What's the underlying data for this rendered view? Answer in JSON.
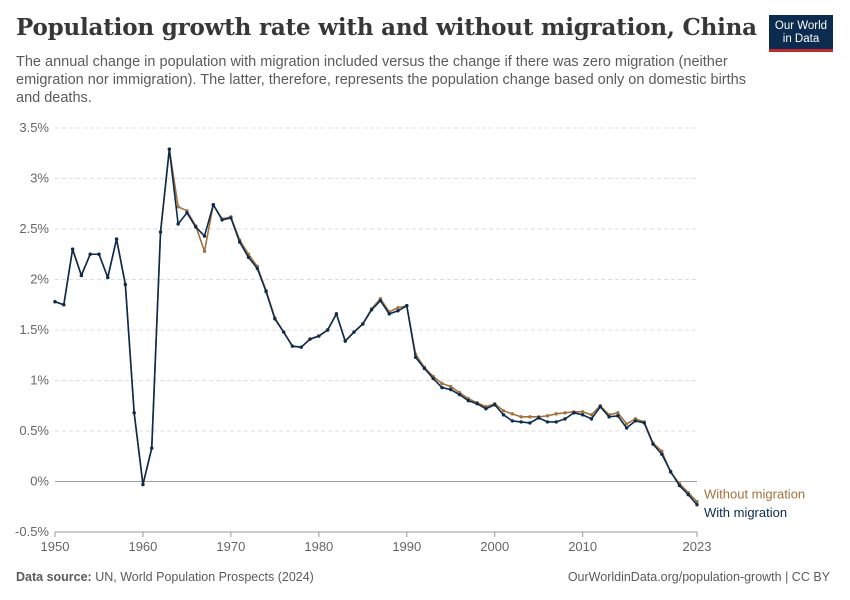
{
  "header": {
    "title": "Population growth rate with and without migration, China",
    "subtitle": "The annual change in population with migration included versus the change if there was zero migration (neither emigration nor immigration). The latter, therefore, represents the population change based only on domestic births and deaths."
  },
  "logo": {
    "line1": "Our World",
    "line2": "in Data"
  },
  "footer": {
    "source_label": "Data source:",
    "source_text": "UN, World Population Prospects (2024)",
    "url": "OurWorldinData.org/population-growth | CC BY"
  },
  "colors": {
    "with_migration": "#0b2b4f",
    "without_migration": "#a2723e",
    "grid": "#dddddd",
    "zero_line": "#a0a0a0"
  },
  "chart_data": {
    "type": "line",
    "title": "Population growth rate with and without migration, China",
    "xlabel": "",
    "ylabel": "",
    "x_ticks": [
      1950,
      1960,
      1970,
      1980,
      1990,
      2000,
      2010,
      2023
    ],
    "x_tick_labels": [
      "1950",
      "1960",
      "1970",
      "1980",
      "1990",
      "2000",
      "2010",
      "2023"
    ],
    "y_ticks": [
      -0.5,
      0,
      0.5,
      1,
      1.5,
      2,
      2.5,
      3,
      3.5
    ],
    "y_tick_labels": [
      "-0.5%",
      "0%",
      "0.5%",
      "1%",
      "1.5%",
      "2%",
      "2.5%",
      "3%",
      "3.5%"
    ],
    "xlim": [
      1950,
      2023
    ],
    "ylim": [
      -0.5,
      3.5
    ],
    "grid": true,
    "legend": "right-end labels",
    "x": [
      1950,
      1951,
      1952,
      1953,
      1954,
      1955,
      1956,
      1957,
      1958,
      1959,
      1960,
      1961,
      1962,
      1963,
      1964,
      1965,
      1966,
      1967,
      1968,
      1969,
      1970,
      1971,
      1972,
      1973,
      1974,
      1975,
      1976,
      1977,
      1978,
      1979,
      1980,
      1981,
      1982,
      1983,
      1984,
      1985,
      1986,
      1987,
      1988,
      1989,
      1990,
      1991,
      1992,
      1993,
      1994,
      1995,
      1996,
      1997,
      1998,
      1999,
      2000,
      2001,
      2002,
      2003,
      2004,
      2005,
      2006,
      2007,
      2008,
      2009,
      2010,
      2011,
      2012,
      2013,
      2014,
      2015,
      2016,
      2017,
      2018,
      2019,
      2020,
      2021,
      2022,
      2023
    ],
    "series": [
      {
        "name": "Without migration",
        "label": "Without migration",
        "values": [
          1.78,
          1.75,
          2.3,
          2.04,
          2.25,
          2.25,
          2.02,
          2.4,
          1.95,
          0.68,
          -0.03,
          0.33,
          2.47,
          3.29,
          2.72,
          2.68,
          2.53,
          2.28,
          2.74,
          2.6,
          2.62,
          2.39,
          2.25,
          2.13,
          1.89,
          1.62,
          1.48,
          1.34,
          1.33,
          1.41,
          1.44,
          1.5,
          1.66,
          1.39,
          1.48,
          1.56,
          1.71,
          1.81,
          1.68,
          1.72,
          1.74,
          1.26,
          1.13,
          1.04,
          0.97,
          0.94,
          0.88,
          0.82,
          0.78,
          0.74,
          0.77,
          0.7,
          0.67,
          0.64,
          0.64,
          0.64,
          0.65,
          0.67,
          0.68,
          0.69,
          0.69,
          0.66,
          0.75,
          0.66,
          0.68,
          0.57,
          0.62,
          0.59,
          0.38,
          0.3,
          0.09,
          -0.02,
          -0.11,
          -0.2
        ]
      },
      {
        "name": "With migration",
        "label": "With migration",
        "values": [
          1.78,
          1.75,
          2.3,
          2.04,
          2.25,
          2.25,
          2.02,
          2.4,
          1.95,
          0.68,
          -0.03,
          0.33,
          2.47,
          3.29,
          2.55,
          2.66,
          2.52,
          2.43,
          2.74,
          2.59,
          2.61,
          2.37,
          2.22,
          2.11,
          1.88,
          1.61,
          1.48,
          1.34,
          1.33,
          1.41,
          1.44,
          1.5,
          1.66,
          1.39,
          1.48,
          1.56,
          1.7,
          1.79,
          1.66,
          1.69,
          1.74,
          1.23,
          1.12,
          1.02,
          0.93,
          0.91,
          0.86,
          0.8,
          0.77,
          0.72,
          0.76,
          0.66,
          0.6,
          0.59,
          0.58,
          0.63,
          0.59,
          0.59,
          0.62,
          0.68,
          0.66,
          0.62,
          0.74,
          0.64,
          0.65,
          0.53,
          0.6,
          0.58,
          0.37,
          0.27,
          0.1,
          -0.04,
          -0.13,
          -0.23
        ]
      }
    ]
  }
}
